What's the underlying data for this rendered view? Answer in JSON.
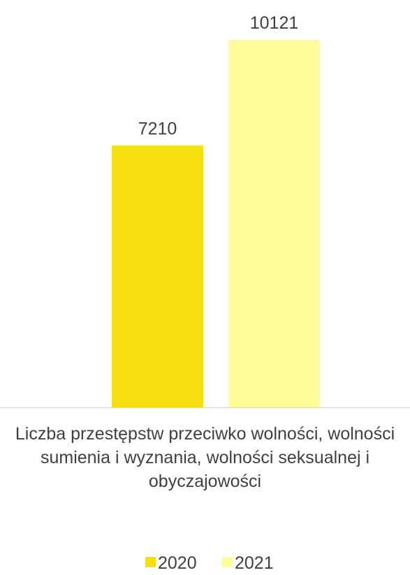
{
  "chart_data": {
    "type": "bar",
    "categories": [
      "Liczba przestępstw przeciwko wolności, wolności sumienia i wyznania, wolności seksualnej i obyczajowości"
    ],
    "series": [
      {
        "name": "2020",
        "color": "#f5df10",
        "values": [
          7210
        ]
      },
      {
        "name": "2021",
        "color": "#fffd99",
        "values": [
          10121
        ]
      }
    ]
  }
}
